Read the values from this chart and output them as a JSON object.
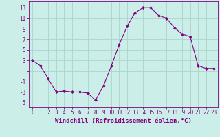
{
  "x": [
    0,
    1,
    2,
    3,
    4,
    5,
    6,
    7,
    8,
    9,
    10,
    11,
    12,
    13,
    14,
    15,
    16,
    17,
    18,
    19,
    20,
    21,
    22,
    23
  ],
  "y": [
    3,
    2,
    -0.5,
    -3,
    -2.8,
    -3,
    -3,
    -3.2,
    -4.5,
    -1.8,
    2,
    6,
    9.5,
    12,
    13,
    13,
    11.5,
    11,
    9.2,
    8,
    7.5,
    2,
    1.5,
    1.5
  ],
  "line_color": "#800080",
  "marker": "D",
  "marker_size": 2,
  "bg_color": "#cceee8",
  "grid_color": "#aad4cc",
  "xlabel": "Windchill (Refroidissement éolien,°C)",
  "yticks": [
    -5,
    -3,
    -1,
    1,
    3,
    5,
    7,
    9,
    11,
    13
  ],
  "xticks": [
    0,
    1,
    2,
    3,
    4,
    5,
    6,
    7,
    8,
    9,
    10,
    11,
    12,
    13,
    14,
    15,
    16,
    17,
    18,
    19,
    20,
    21,
    22,
    23
  ],
  "ylim": [
    -5.8,
    14.2
  ],
  "xlim": [
    -0.5,
    23.5
  ],
  "tick_color": "#800080",
  "tick_fontsize": 5.5,
  "label_fontsize": 6.5
}
